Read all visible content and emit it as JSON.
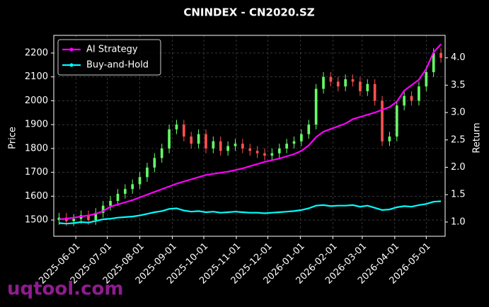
{
  "chart_data": {
    "type": "candlestick",
    "title": "CNINDEX - CN2020.SZ",
    "y_label": "Price",
    "y2_label": "Return",
    "watermark": "uqtool.com",
    "x": [
      "2025-05-16",
      "2025-05-23",
      "2025-05-30",
      "2025-06-06",
      "2025-06-13",
      "2025-06-20",
      "2025-06-27",
      "2025-07-04",
      "2025-07-11",
      "2025-07-18",
      "2025-07-25",
      "2025-08-01",
      "2025-08-08",
      "2025-08-15",
      "2025-08-22",
      "2025-08-29",
      "2025-09-05",
      "2025-09-12",
      "2025-09-19",
      "2025-09-26",
      "2025-10-03",
      "2025-10-10",
      "2025-10-17",
      "2025-10-24",
      "2025-10-31",
      "2025-11-07",
      "2025-11-14",
      "2025-11-21",
      "2025-11-28",
      "2025-12-05",
      "2025-12-12",
      "2025-12-19",
      "2025-12-26",
      "2026-01-02",
      "2026-01-09",
      "2026-01-16",
      "2026-01-23",
      "2026-01-30",
      "2026-02-06",
      "2026-02-13",
      "2026-02-20",
      "2026-02-27",
      "2026-03-06",
      "2026-03-13",
      "2026-03-20",
      "2026-03-27",
      "2026-04-03",
      "2026-04-10",
      "2026-04-17",
      "2026-04-24",
      "2026-05-01",
      "2026-05-08",
      "2026-05-15"
    ],
    "candles": {
      "up_color": "#66ff66",
      "down_color": "#ff5050",
      "open": [
        1500,
        1510,
        1495,
        1505,
        1520,
        1500,
        1530,
        1560,
        1580,
        1610,
        1630,
        1650,
        1680,
        1720,
        1760,
        1800,
        1880,
        1900,
        1850,
        1820,
        1860,
        1800,
        1830,
        1790,
        1810,
        1820,
        1800,
        1790,
        1780,
        1770,
        1780,
        1800,
        1820,
        1830,
        1860,
        1900,
        2050,
        2100,
        2080,
        2060,
        2090,
        2080,
        2040,
        2070,
        2000,
        1830,
        1850,
        1980,
        2020,
        2000,
        2060,
        2120,
        2200
      ],
      "high": [
        1530,
        1530,
        1525,
        1540,
        1540,
        1550,
        1580,
        1600,
        1630,
        1650,
        1670,
        1700,
        1740,
        1780,
        1820,
        1900,
        1920,
        1920,
        1870,
        1880,
        1880,
        1850,
        1850,
        1830,
        1840,
        1840,
        1820,
        1810,
        1800,
        1800,
        1820,
        1840,
        1850,
        1880,
        1920,
        2070,
        2120,
        2120,
        2100,
        2110,
        2110,
        2100,
        2090,
        2090,
        2020,
        1870,
        2000,
        2040,
        2040,
        2080,
        2140,
        2220,
        2220
      ],
      "low": [
        1480,
        1475,
        1475,
        1485,
        1480,
        1480,
        1510,
        1540,
        1560,
        1590,
        1610,
        1630,
        1660,
        1700,
        1740,
        1780,
        1860,
        1830,
        1800,
        1800,
        1780,
        1780,
        1770,
        1770,
        1790,
        1780,
        1770,
        1760,
        1750,
        1750,
        1760,
        1780,
        1800,
        1810,
        1840,
        1880,
        2030,
        2060,
        2040,
        2040,
        2060,
        2020,
        2020,
        1980,
        1810,
        1810,
        1830,
        1960,
        1980,
        1980,
        2040,
        2100,
        2160
      ],
      "close": [
        1510,
        1495,
        1505,
        1520,
        1500,
        1530,
        1560,
        1580,
        1610,
        1630,
        1650,
        1680,
        1720,
        1760,
        1800,
        1880,
        1900,
        1850,
        1820,
        1860,
        1800,
        1830,
        1790,
        1810,
        1820,
        1800,
        1790,
        1780,
        1770,
        1780,
        1800,
        1820,
        1830,
        1860,
        1900,
        2050,
        2100,
        2080,
        2060,
        2090,
        2080,
        2040,
        2070,
        2000,
        1830,
        1850,
        1980,
        2020,
        2000,
        2060,
        2120,
        2200,
        2180
      ]
    },
    "series": [
      {
        "name": "AI Strategy",
        "color": "#ff00ff",
        "axis": "y2",
        "values": [
          1.05,
          1.06,
          1.08,
          1.1,
          1.12,
          1.15,
          1.2,
          1.28,
          1.32,
          1.36,
          1.4,
          1.45,
          1.5,
          1.55,
          1.6,
          1.65,
          1.7,
          1.74,
          1.78,
          1.82,
          1.86,
          1.88,
          1.9,
          1.92,
          1.95,
          1.98,
          2.02,
          2.06,
          2.1,
          2.13,
          2.16,
          2.2,
          2.24,
          2.3,
          2.4,
          2.55,
          2.65,
          2.7,
          2.75,
          2.8,
          2.88,
          2.92,
          2.96,
          3.0,
          3.05,
          3.1,
          3.2,
          3.4,
          3.5,
          3.6,
          3.8,
          4.1,
          4.25
        ]
      },
      {
        "name": "Buy-and-Hold",
        "color": "#00ffff",
        "axis": "y2",
        "values": [
          0.98,
          0.97,
          0.98,
          1.0,
          0.99,
          1.02,
          1.05,
          1.06,
          1.08,
          1.09,
          1.1,
          1.12,
          1.15,
          1.18,
          1.2,
          1.24,
          1.25,
          1.21,
          1.19,
          1.2,
          1.18,
          1.19,
          1.17,
          1.18,
          1.19,
          1.18,
          1.17,
          1.17,
          1.16,
          1.17,
          1.18,
          1.19,
          1.2,
          1.22,
          1.25,
          1.3,
          1.31,
          1.29,
          1.3,
          1.3,
          1.31,
          1.28,
          1.3,
          1.26,
          1.22,
          1.23,
          1.27,
          1.29,
          1.28,
          1.31,
          1.33,
          1.37,
          1.38
        ]
      }
    ],
    "xlim": [
      "2025-05-11",
      "2026-05-19"
    ],
    "xticks": [
      "2025-06-01",
      "2025-07-01",
      "2025-08-01",
      "2025-09-01",
      "2025-10-01",
      "2025-11-01",
      "2025-12-01",
      "2026-01-01",
      "2026-02-01",
      "2026-03-01",
      "2026-04-01",
      "2026-05-01"
    ],
    "ylim": [
      1432,
      2274
    ],
    "yticks": [
      1500,
      1600,
      1700,
      1800,
      1900,
      2000,
      2100,
      2200
    ],
    "y2lim": [
      0.74,
      4.41
    ],
    "y2ticks": [
      {
        "value": 1,
        "label": "1.0"
      },
      1.5,
      {
        "value": 2,
        "label": "2.0"
      },
      2.5,
      {
        "value": 3,
        "label": "3.0"
      },
      3.5,
      {
        "value": 4,
        "label": "4.0"
      }
    ],
    "grid": true,
    "legend": "upper-left"
  }
}
